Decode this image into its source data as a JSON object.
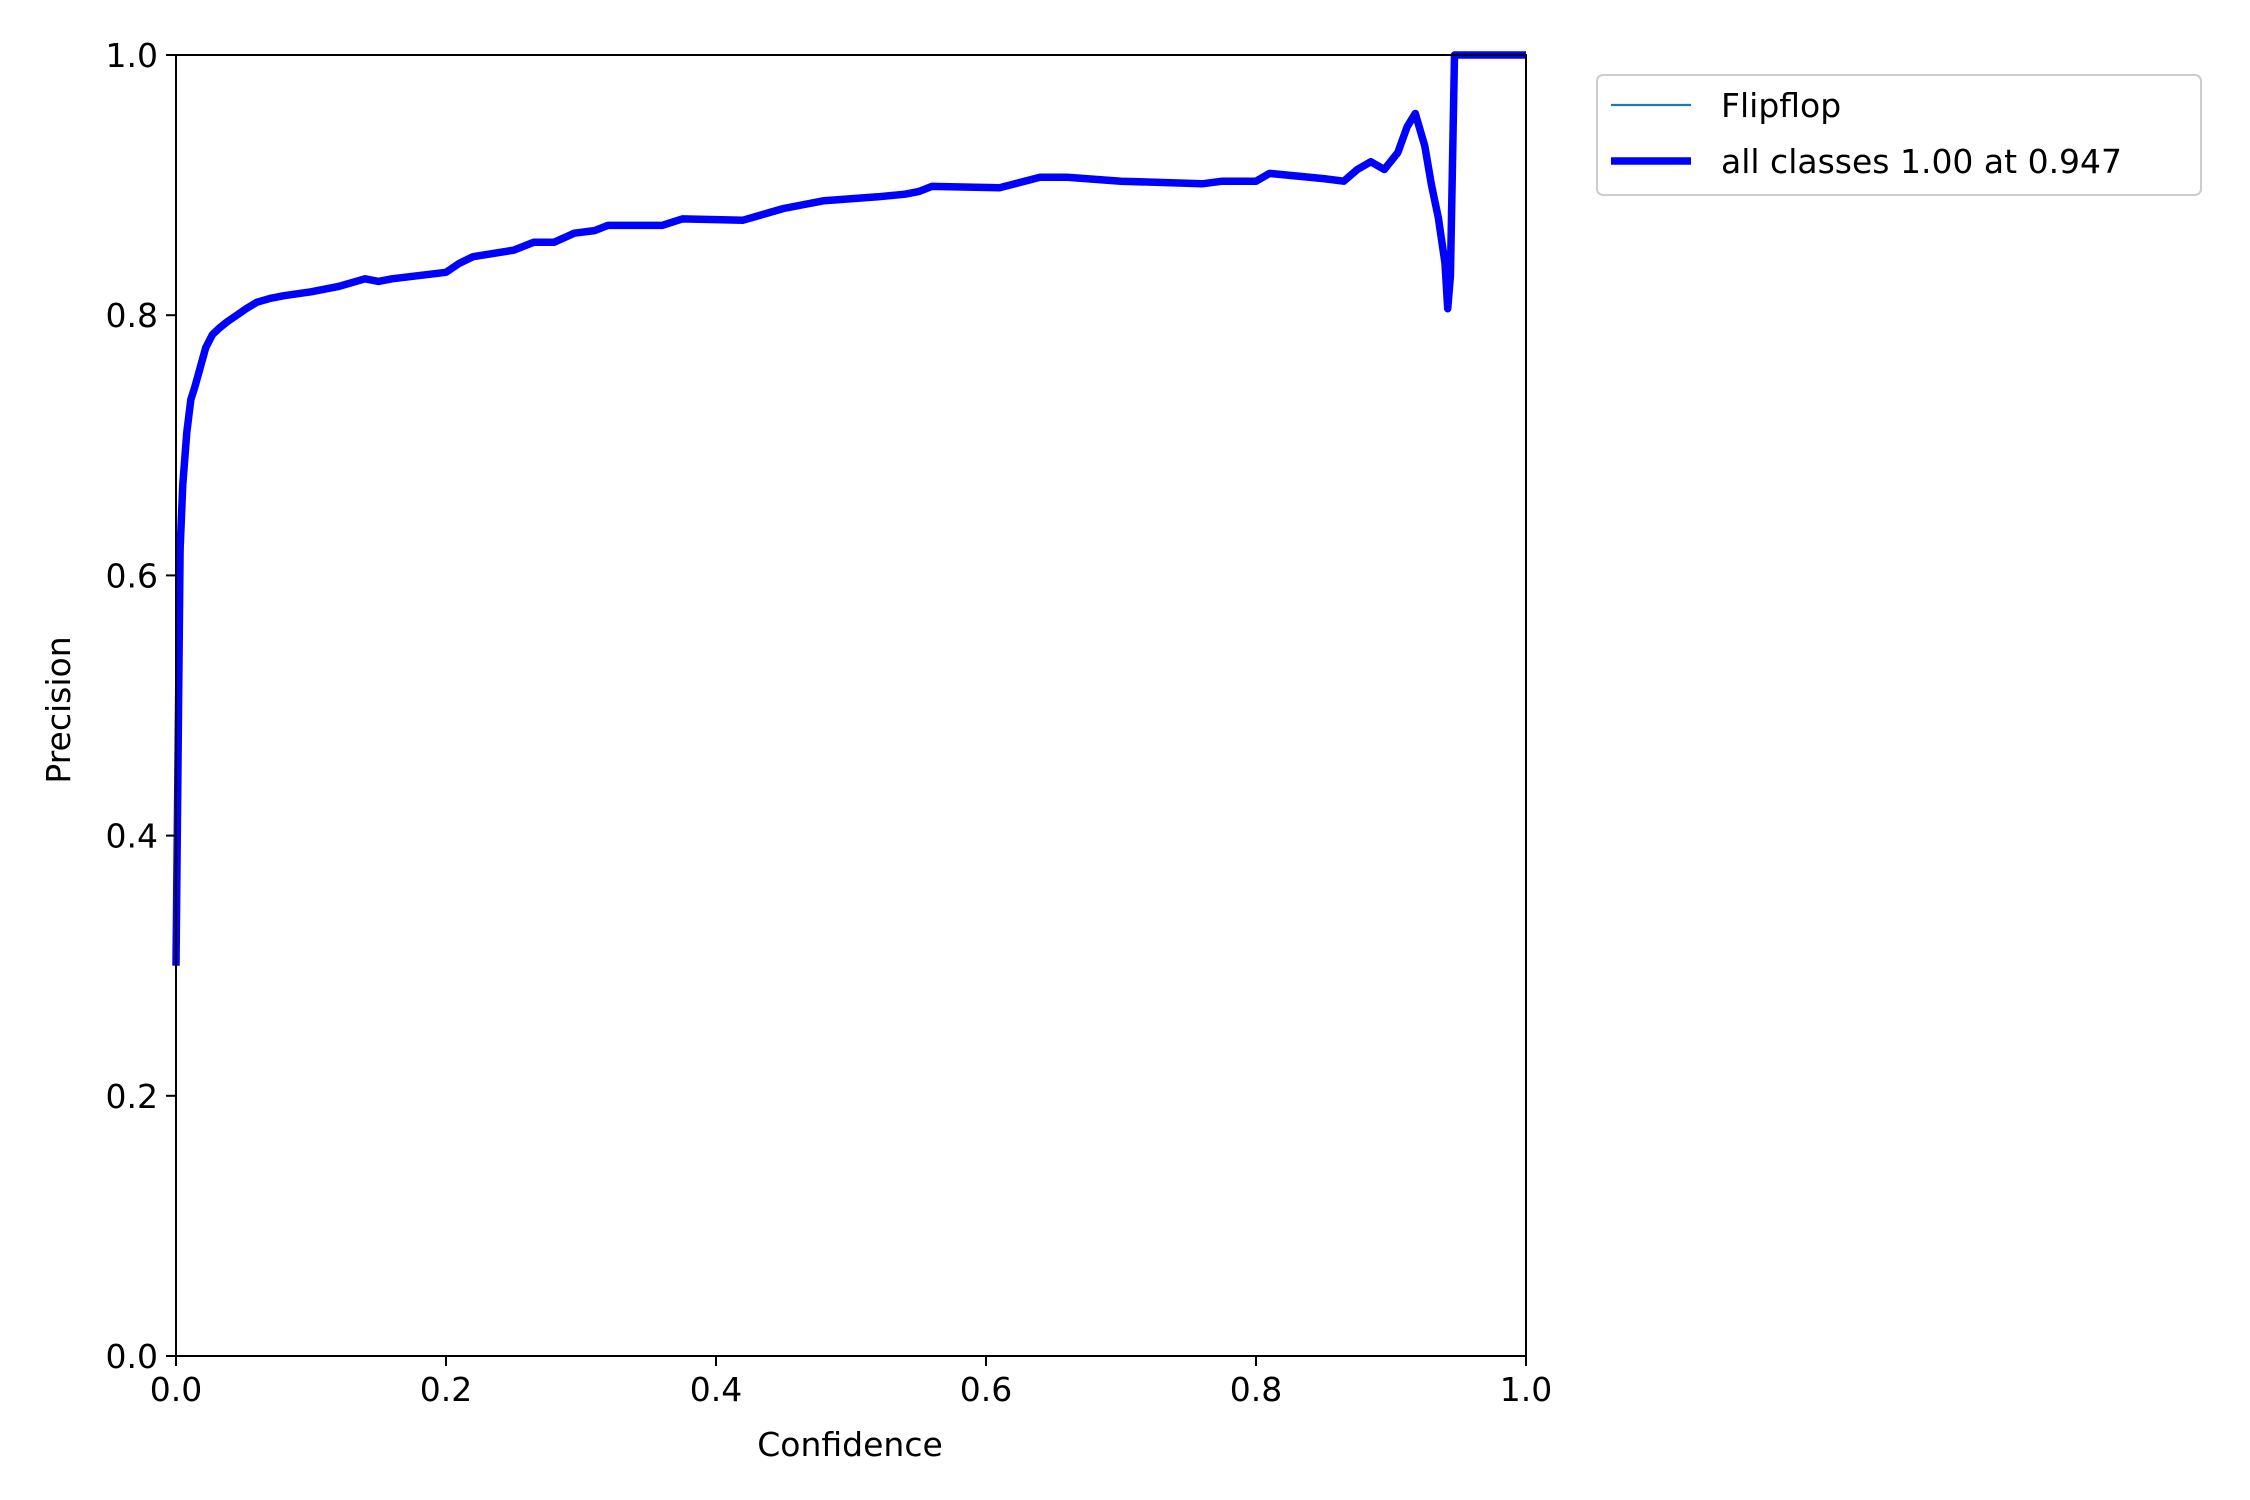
{
  "chart_data": {
    "type": "line",
    "title": "",
    "xlabel": "Confidence",
    "ylabel": "Precision",
    "xlim": [
      0.0,
      1.0
    ],
    "ylim": [
      0.0,
      1.0
    ],
    "xticks": [
      "0.0",
      "0.2",
      "0.4",
      "0.6",
      "0.8",
      "1.0"
    ],
    "yticks": [
      "0.0",
      "0.2",
      "0.4",
      "0.6",
      "0.8",
      "1.0"
    ],
    "grid": false,
    "legend_position": "outside-top-right",
    "series": [
      {
        "name": "Flipflop",
        "color": "#1f77b4",
        "line_width": "thin",
        "x": [
          0.0,
          0.003,
          0.005,
          0.008,
          0.011,
          0.014,
          0.018,
          0.022,
          0.027,
          0.032,
          0.038,
          0.045,
          0.052,
          0.06,
          0.07,
          0.08,
          0.1,
          0.12,
          0.14,
          0.15,
          0.16,
          0.2,
          0.21,
          0.22,
          0.25,
          0.265,
          0.28,
          0.295,
          0.31,
          0.32,
          0.36,
          0.375,
          0.42,
          0.45,
          0.48,
          0.52,
          0.54,
          0.55,
          0.56,
          0.61,
          0.64,
          0.66,
          0.7,
          0.76,
          0.775,
          0.8,
          0.81,
          0.85,
          0.865,
          0.875,
          0.885,
          0.895,
          0.905,
          0.912,
          0.918,
          0.925,
          0.93,
          0.935,
          0.94,
          0.942,
          0.944,
          0.947,
          0.96,
          1.0
        ],
        "y": [
          0.3,
          0.62,
          0.67,
          0.71,
          0.735,
          0.745,
          0.76,
          0.775,
          0.785,
          0.79,
          0.795,
          0.8,
          0.805,
          0.81,
          0.813,
          0.815,
          0.818,
          0.822,
          0.828,
          0.826,
          0.828,
          0.833,
          0.84,
          0.845,
          0.85,
          0.856,
          0.856,
          0.863,
          0.865,
          0.869,
          0.869,
          0.874,
          0.873,
          0.882,
          0.888,
          0.891,
          0.893,
          0.895,
          0.899,
          0.898,
          0.906,
          0.906,
          0.903,
          0.901,
          0.903,
          0.903,
          0.909,
          0.905,
          0.903,
          0.912,
          0.918,
          0.912,
          0.925,
          0.945,
          0.955,
          0.93,
          0.9,
          0.875,
          0.84,
          0.805,
          0.83,
          1.0,
          1.0,
          1.0
        ]
      },
      {
        "name": "all classes 1.00 at 0.947",
        "color": "#0000ff",
        "line_width": "thick",
        "x": [
          0.0,
          0.003,
          0.005,
          0.008,
          0.011,
          0.014,
          0.018,
          0.022,
          0.027,
          0.032,
          0.038,
          0.045,
          0.052,
          0.06,
          0.07,
          0.08,
          0.1,
          0.12,
          0.14,
          0.15,
          0.16,
          0.2,
          0.21,
          0.22,
          0.25,
          0.265,
          0.28,
          0.295,
          0.31,
          0.32,
          0.36,
          0.375,
          0.42,
          0.45,
          0.48,
          0.52,
          0.54,
          0.55,
          0.56,
          0.61,
          0.64,
          0.66,
          0.7,
          0.76,
          0.775,
          0.8,
          0.81,
          0.85,
          0.865,
          0.875,
          0.885,
          0.895,
          0.905,
          0.912,
          0.918,
          0.925,
          0.93,
          0.935,
          0.94,
          0.942,
          0.944,
          0.947,
          0.96,
          1.0
        ],
        "y": [
          0.3,
          0.62,
          0.67,
          0.71,
          0.735,
          0.745,
          0.76,
          0.775,
          0.785,
          0.79,
          0.795,
          0.8,
          0.805,
          0.81,
          0.813,
          0.815,
          0.818,
          0.822,
          0.828,
          0.826,
          0.828,
          0.833,
          0.84,
          0.845,
          0.85,
          0.856,
          0.856,
          0.863,
          0.865,
          0.869,
          0.869,
          0.874,
          0.873,
          0.882,
          0.888,
          0.891,
          0.893,
          0.895,
          0.899,
          0.898,
          0.906,
          0.906,
          0.903,
          0.901,
          0.903,
          0.903,
          0.909,
          0.905,
          0.903,
          0.912,
          0.918,
          0.912,
          0.925,
          0.945,
          0.955,
          0.93,
          0.9,
          0.875,
          0.84,
          0.805,
          0.83,
          1.0,
          1.0,
          1.0
        ]
      }
    ]
  }
}
